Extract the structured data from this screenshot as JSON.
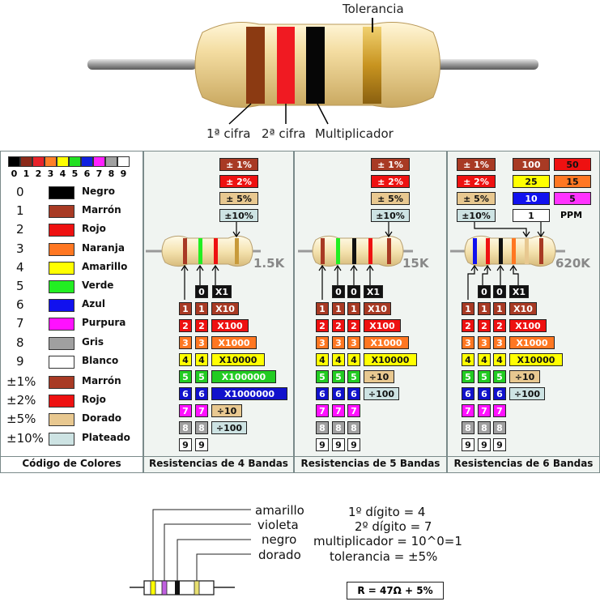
{
  "top": {
    "tolerance_label": "Tolerancia",
    "digit1_label": "1ª cifra",
    "digit2_label": "2ª cifra",
    "multiplier_label": "Multiplicador"
  },
  "legend": {
    "scale_numbers": [
      "0",
      "1",
      "2",
      "3",
      "4",
      "5",
      "6",
      "7",
      "8",
      "9"
    ],
    "scale_colors": [
      "#000000",
      "#8b2a1a",
      "#e8232a",
      "#ff7f27",
      "#ffff00",
      "#22e022",
      "#1020e0",
      "#ff20ff",
      "#a0a0a0",
      "#ffffff"
    ],
    "rows": [
      {
        "num": "0",
        "name": "Negro",
        "color": "#000000"
      },
      {
        "num": "1",
        "name": "Marrón",
        "color": "#a83a24"
      },
      {
        "num": "2",
        "name": "Rojo",
        "color": "#ee1111"
      },
      {
        "num": "3",
        "name": "Naranja",
        "color": "#ff7722"
      },
      {
        "num": "4",
        "name": "Amarillo",
        "color": "#ffff00"
      },
      {
        "num": "5",
        "name": "Verde",
        "color": "#22ee22"
      },
      {
        "num": "6",
        "name": "Azul",
        "color": "#1111ee"
      },
      {
        "num": "7",
        "name": "Purpura",
        "color": "#ff11ff"
      },
      {
        "num": "8",
        "name": "Gris",
        "color": "#a0a0a0"
      },
      {
        "num": "9",
        "name": "Blanco",
        "color": "#ffffff"
      },
      {
        "num": "±1%",
        "name": "Marrón",
        "color": "#a83a24"
      },
      {
        "num": "±2%",
        "name": "Rojo",
        "color": "#ee1111"
      },
      {
        "num": "±5%",
        "name": "Dorado",
        "color": "#e8c890"
      },
      {
        "num": "±10%",
        "name": "Plateado",
        "color": "#cde3e3"
      }
    ]
  },
  "tolerances": [
    "± 1%",
    "± 2%",
    "± 5%",
    "±10%"
  ],
  "digits": [
    "1",
    "2",
    "3",
    "4",
    "5",
    "6",
    "7",
    "8",
    "9"
  ],
  "zero": "0",
  "multipliers": [
    "X1",
    "X10",
    "X100",
    "X1000",
    "X10000",
    "X100000",
    "X1000000",
    "÷10",
    "÷100"
  ],
  "panel4": {
    "value": "1.5K",
    "footer": "Resistencias de 4 Bandas"
  },
  "panel5": {
    "value": "15K",
    "footer": "Resistencias de 5 Bandas"
  },
  "panel6": {
    "value": "620K",
    "footer": "Resistencias de 6 Bandas",
    "ppm": [
      "100",
      "50",
      "25",
      "15",
      "10",
      "5",
      "1"
    ],
    "ppm_label": "PPM"
  },
  "legend_footer": "Código de Colores",
  "example": {
    "names": [
      "amarillo",
      "violeta",
      "negro",
      "dorado"
    ],
    "explains": [
      "1º dígito = 4",
      "2º dígito = 7",
      "multiplicador = 10^0=1",
      "tolerancia = ±5%"
    ],
    "result": "R = 47Ω + 5%"
  }
}
